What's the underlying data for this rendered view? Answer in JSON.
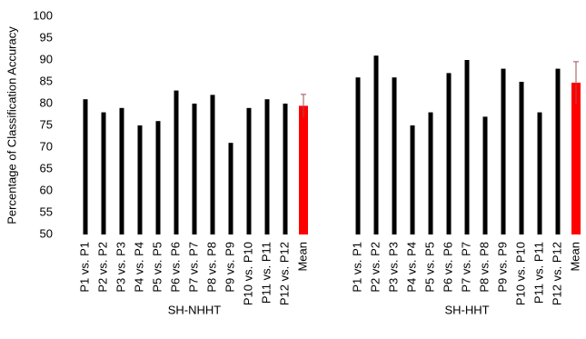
{
  "chart_data": {
    "type": "bar",
    "y_label": "Percentage of Classification Accuracy",
    "ylim": [
      50,
      100
    ],
    "yticks": [
      50,
      55,
      60,
      65,
      70,
      75,
      80,
      85,
      90,
      95,
      100
    ],
    "groups": [
      {
        "name": "SH-NHHT",
        "categories": [
          "P1 vs. P1",
          "P2 vs. P2",
          "P3 vs. P3",
          "P4 vs. P4",
          "P5 vs. P5",
          "P6 vs. P6",
          "P7 vs. P7",
          "P8 vs. P8",
          "P9 vs. P9",
          "P10 vs. P10",
          "P11 vs. P11",
          "P12 vs. P12",
          "Mean"
        ],
        "values": [
          81,
          78,
          79,
          75,
          76,
          83,
          80,
          82,
          71,
          79,
          81,
          80,
          79.5
        ],
        "errors": [
          null,
          null,
          null,
          null,
          null,
          null,
          null,
          null,
          null,
          null,
          null,
          null,
          2.6
        ],
        "colors": [
          "#000000",
          "#000000",
          "#000000",
          "#000000",
          "#000000",
          "#000000",
          "#000000",
          "#000000",
          "#000000",
          "#000000",
          "#000000",
          "#000000",
          "#ff0000"
        ]
      },
      {
        "name": "SH-HHT",
        "categories": [
          "P1 vs. P1",
          "P2 vs. P2",
          "P3 vs. P3",
          "P4 vs. P4",
          "P5 vs. P5",
          "P6 vs. P6",
          "P7 vs. P7",
          "P8 vs. P8",
          "P9 vs. P9",
          "P10 vs. P10",
          "P11 vs. P11",
          "P12 vs. P12",
          "Mean"
        ],
        "values": [
          86,
          91,
          86,
          75,
          78,
          87,
          90,
          77,
          88,
          85,
          78,
          88,
          84.8
        ],
        "errors": [
          null,
          null,
          null,
          null,
          null,
          null,
          null,
          null,
          null,
          null,
          null,
          null,
          4.8
        ],
        "colors": [
          "#000000",
          "#000000",
          "#000000",
          "#000000",
          "#000000",
          "#000000",
          "#000000",
          "#000000",
          "#000000",
          "#000000",
          "#000000",
          "#000000",
          "#ff0000"
        ]
      }
    ]
  }
}
